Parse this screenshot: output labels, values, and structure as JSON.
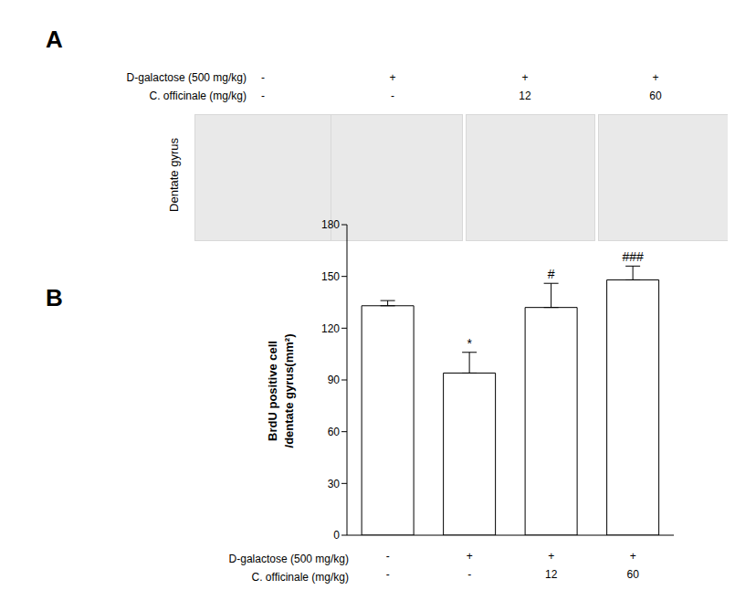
{
  "panel_labels": [
    "A",
    "B"
  ],
  "panel_a": {
    "rows": [
      {
        "label": "D-galactose (500 mg/kg)",
        "values": [
          "-",
          "+",
          "+",
          "+"
        ]
      },
      {
        "label": "C. officinale (mg/kg)",
        "values": [
          "-",
          "-",
          "12",
          "60"
        ]
      }
    ],
    "image_label": "Dentate gyrus"
  },
  "chart_data": {
    "type": "bar",
    "y_label": [
      "BrdU positive cell",
      "/dentate gyrus(mm²)"
    ],
    "categories": [
      null,
      null,
      null,
      null
    ],
    "condition_rows": [
      {
        "label": "D-galactose (500 mg/kg)",
        "values": [
          "-",
          "+",
          "+",
          "+"
        ]
      },
      {
        "label": "C. officinale (mg/kg)",
        "values": [
          "-",
          "-",
          "12",
          "60"
        ]
      }
    ],
    "values": [
      133,
      94,
      132,
      148
    ],
    "errors": [
      3,
      12,
      14,
      8
    ],
    "annotations": [
      null,
      "*",
      "#",
      "###"
    ],
    "color": "#ffffff",
    "ylim": [
      0,
      180
    ],
    "yticks": [
      0,
      30,
      60,
      90,
      120,
      150,
      180
    ],
    "grid": false
  }
}
